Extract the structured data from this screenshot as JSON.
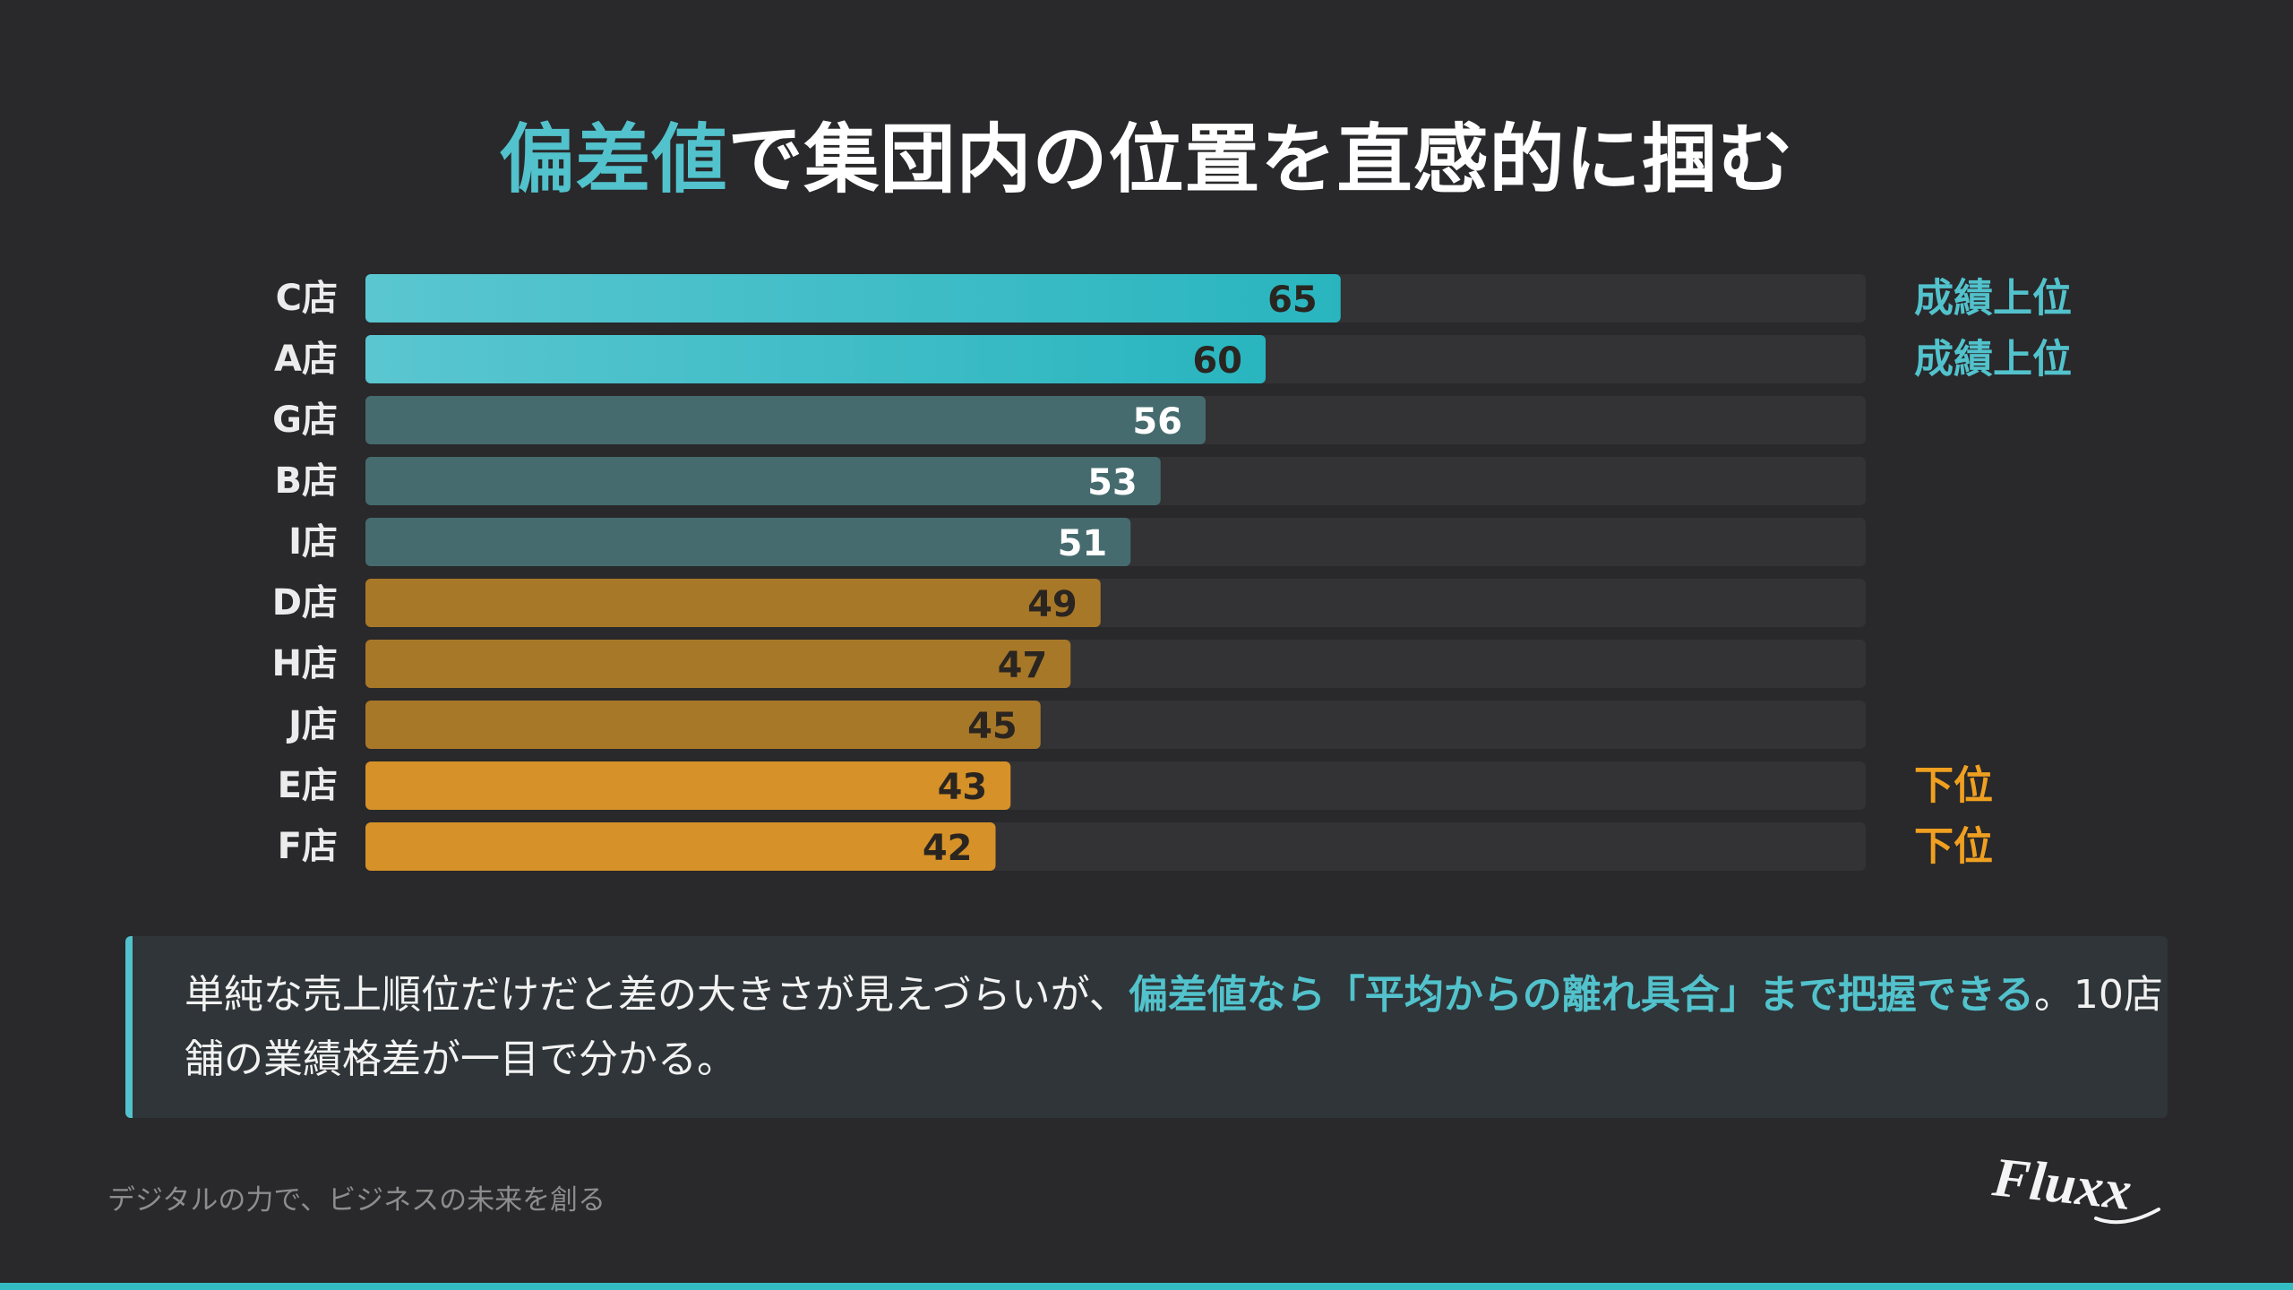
{
  "title": {
    "accent": "偏差値",
    "rest": "で集団内の位置を直感的に掴む"
  },
  "chart_data": {
    "type": "bar",
    "orientation": "horizontal",
    "categories": [
      "C店",
      "A店",
      "G店",
      "B店",
      "I店",
      "D店",
      "H店",
      "J店",
      "E店",
      "F店"
    ],
    "values": [
      65,
      60,
      56,
      53,
      51,
      49,
      47,
      45,
      43,
      42
    ],
    "data_labels": [
      "65",
      "60",
      "56",
      "53",
      "51",
      "49",
      "47",
      "45",
      "43",
      "42"
    ],
    "side_labels": [
      "成績上位",
      "成績上位",
      "",
      "",
      "",
      "",
      "",
      "",
      "下位",
      "下位"
    ],
    "xlim": [
      0,
      100
    ],
    "grid": false,
    "legend": "none",
    "colors": {
      "top_start": "#5ac6d0",
      "top_end": "#29b5bf",
      "upper_mid": "#456b6e",
      "lower_mid": "#a87829",
      "bottom": "#d69128",
      "track": "#333234",
      "label_light": "#ffffff",
      "label_dark": "#2a2520",
      "category_text": "#ececec",
      "side_top": "#52c2cc",
      "side_bottom": "#f0a020"
    }
  },
  "callout": {
    "part1": "単純な売上順位だけだと差の大きさが見えづらいが、",
    "part2_highlight": "偏差値なら「平均からの離れ具合」まで把握できる",
    "part3": "。10店舗の業績格差が一目で分かる。"
  },
  "footer": {
    "tagline": "デジタルの力で、ビジネスの未来を創る",
    "logo_text": "Fluxx"
  }
}
